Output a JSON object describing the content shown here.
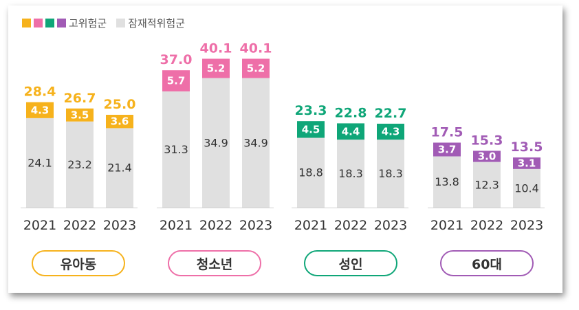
{
  "legend": {
    "high_risk_label": "고위험군",
    "potential_risk_label": "잠재적위험군",
    "high_risk_colors": [
      "#F6B21C",
      "#EE6FA8",
      "#0FA678",
      "#A15BB5"
    ],
    "potential_risk_color": "#E0E0E0"
  },
  "chart_data": {
    "type": "bar",
    "stacked": true,
    "grid": false,
    "years": [
      "2021",
      "2022",
      "2023"
    ],
    "ylim": [
      0,
      42
    ],
    "groups": [
      {
        "name": "유아동",
        "color": "#F6B21C",
        "potential_risk": [
          24.1,
          23.2,
          21.4
        ],
        "high_risk": [
          4.3,
          3.5,
          3.6
        ],
        "totals": [
          28.4,
          26.7,
          25.0
        ],
        "total_labels": [
          "28.4",
          "26.7",
          "25.0"
        ],
        "potential_labels": [
          "24.1",
          "23.2",
          "21.4"
        ],
        "high_labels": [
          "4.3",
          "3.5",
          "3.6"
        ]
      },
      {
        "name": "청소년",
        "color": "#EE6FA8",
        "potential_risk": [
          31.3,
          34.9,
          34.9
        ],
        "high_risk": [
          5.7,
          5.2,
          5.2
        ],
        "totals": [
          37.0,
          40.1,
          40.1
        ],
        "total_labels": [
          "37.0",
          "40.1",
          "40.1"
        ],
        "potential_labels": [
          "31.3",
          "34.9",
          "34.9"
        ],
        "high_labels": [
          "5.7",
          "5.2",
          "5.2"
        ]
      },
      {
        "name": "성인",
        "color": "#0FA678",
        "potential_risk": [
          18.8,
          18.3,
          18.3
        ],
        "high_risk": [
          4.5,
          4.4,
          4.3
        ],
        "totals": [
          23.3,
          22.8,
          22.7
        ],
        "total_labels": [
          "23.3",
          "22.8",
          "22.7"
        ],
        "potential_labels": [
          "18.8",
          "18.3",
          "18.3"
        ],
        "high_labels": [
          "4.5",
          "4.4",
          "4.3"
        ]
      },
      {
        "name": "60대",
        "color": "#A15BB5",
        "potential_risk": [
          13.8,
          12.3,
          10.4
        ],
        "high_risk": [
          3.7,
          3.0,
          3.1
        ],
        "totals": [
          17.5,
          15.3,
          13.5
        ],
        "total_labels": [
          "17.5",
          "15.3",
          "13.5"
        ],
        "potential_labels": [
          "13.8",
          "12.3",
          "10.4"
        ],
        "high_labels": [
          "3.7",
          "3.0",
          "3.1"
        ]
      }
    ]
  }
}
